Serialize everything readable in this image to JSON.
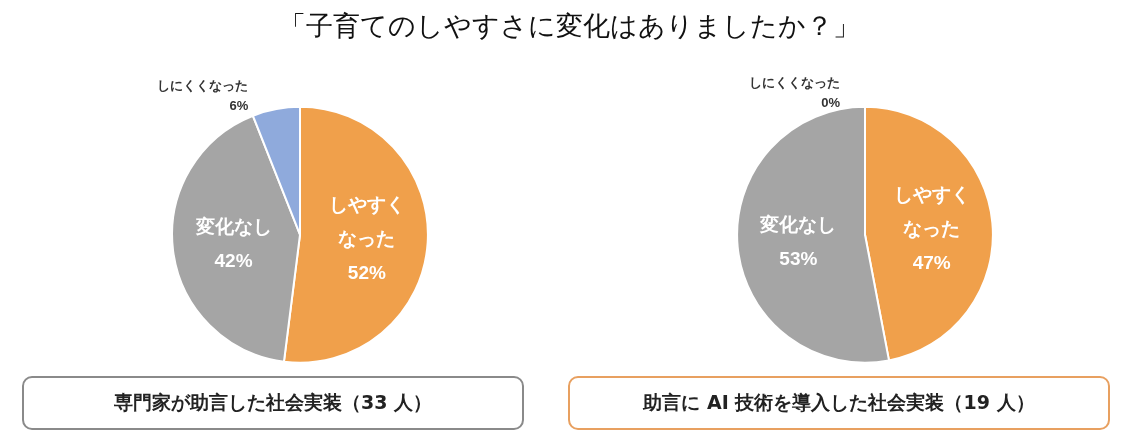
{
  "chart_data": [
    {
      "type": "pie",
      "title": "「子育てのしやすさに変化はありましたか？」",
      "subtitle": "専門家が助言した社会実装（33 人）",
      "categories": [
        "しやすくなった",
        "変化なし",
        "しにくくなった"
      ],
      "values": [
        52,
        42,
        6
      ],
      "value_labels": [
        "52%",
        "42%",
        "6%"
      ],
      "colors": [
        "#f0a04b",
        "#a5a5a5",
        "#8faadc"
      ],
      "legend": false
    },
    {
      "type": "pie",
      "subtitle": "助言に AI 技術を導入した社会実装（19 人）",
      "categories": [
        "しやすくなった",
        "変化なし",
        "しにくくなった"
      ],
      "values": [
        47,
        53,
        0
      ],
      "value_labels": [
        "47%",
        "53%",
        "0%"
      ],
      "colors": [
        "#f0a04b",
        "#a5a5a5",
        "#8faadc"
      ],
      "legend": false
    }
  ]
}
